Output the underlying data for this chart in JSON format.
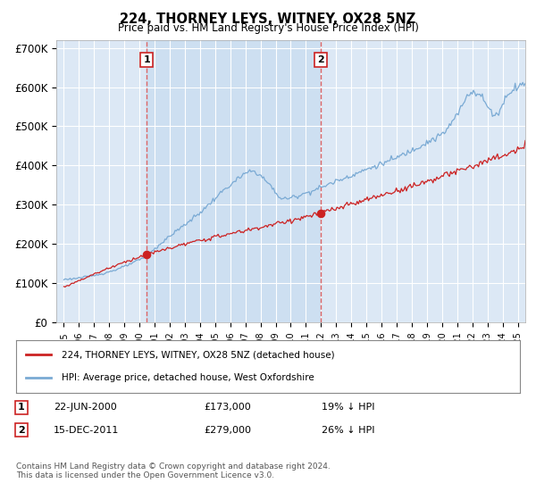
{
  "title": "224, THORNEY LEYS, WITNEY, OX28 5NZ",
  "subtitle": "Price paid vs. HM Land Registry's House Price Index (HPI)",
  "bg_color": "#dce8f5",
  "plot_bg_color": "#dce8f5",
  "shade_color": "#c8dcf0",
  "ylabel": "",
  "ylim": [
    0,
    720000
  ],
  "yticks": [
    0,
    100000,
    200000,
    300000,
    400000,
    500000,
    600000,
    700000
  ],
  "ytick_labels": [
    "£0",
    "£100K",
    "£200K",
    "£300K",
    "£400K",
    "£500K",
    "£600K",
    "£700K"
  ],
  "hpi_color": "#7aaad4",
  "price_color": "#cc2222",
  "vline_color": "#dd6666",
  "marker1_date": 2000.47,
  "marker1_price": 173000,
  "marker1_label": "1",
  "marker1_text": "22-JUN-2000",
  "marker1_amount": "£173,000",
  "marker1_pct": "19% ↓ HPI",
  "marker2_date": 2011.96,
  "marker2_price": 279000,
  "marker2_label": "2",
  "marker2_text": "15-DEC-2011",
  "marker2_amount": "£279,000",
  "marker2_pct": "26% ↓ HPI",
  "legend_line1": "224, THORNEY LEYS, WITNEY, OX28 5NZ (detached house)",
  "legend_line2": "HPI: Average price, detached house, West Oxfordshire",
  "footer": "Contains HM Land Registry data © Crown copyright and database right 2024.\nThis data is licensed under the Open Government Licence v3.0.",
  "xmin": 1994.5,
  "xmax": 2025.5
}
